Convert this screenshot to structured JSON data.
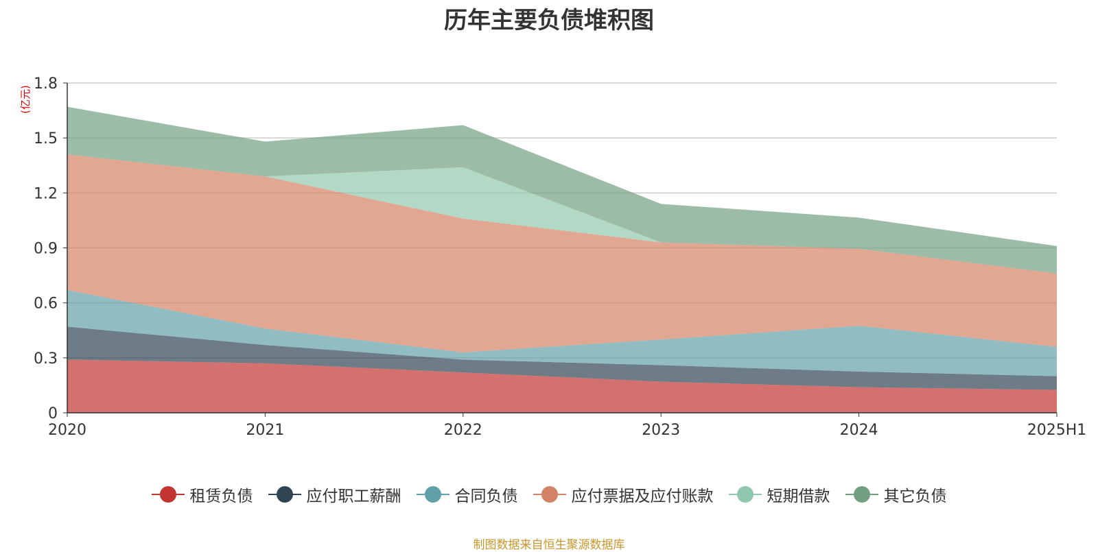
{
  "chart_data": {
    "type": "area",
    "stacked": true,
    "title": "历年主要负债堆积图",
    "ylabel": "(亿元)",
    "ylim": [
      0,
      1.8
    ],
    "yticks": [
      "0",
      "0.3",
      "0.6",
      "0.9",
      "1.2",
      "1.5",
      "1.8"
    ],
    "categories": [
      "2020",
      "2021",
      "2022",
      "2023",
      "2024",
      "2025H1"
    ],
    "grid": true,
    "legend_position": "bottom",
    "series": [
      {
        "name": "租赁负债",
        "color": "#c23531",
        "values": [
          0.29,
          0.27,
          0.22,
          0.17,
          0.14,
          0.125
        ]
      },
      {
        "name": "应付职工薪酬",
        "color": "#2f4554",
        "values": [
          0.18,
          0.1,
          0.07,
          0.09,
          0.085,
          0.075
        ]
      },
      {
        "name": "合同负债",
        "color": "#61a0a8",
        "values": [
          0.2,
          0.09,
          0.04,
          0.14,
          0.25,
          0.16
        ]
      },
      {
        "name": "应付票据及应付账款",
        "color": "#d48265",
        "values": [
          0.74,
          0.83,
          0.73,
          0.53,
          0.42,
          0.4
        ]
      },
      {
        "name": "短期借款",
        "color": "#91c7ae",
        "values": [
          0.0,
          0.0,
          0.28,
          0.0,
          0.0,
          0.0
        ]
      },
      {
        "name": "其它负债",
        "color": "#749f83",
        "values": [
          0.26,
          0.19,
          0.23,
          0.21,
          0.17,
          0.15
        ]
      }
    ]
  },
  "footer": {
    "source": "制图数据来自恒生聚源数据库"
  }
}
